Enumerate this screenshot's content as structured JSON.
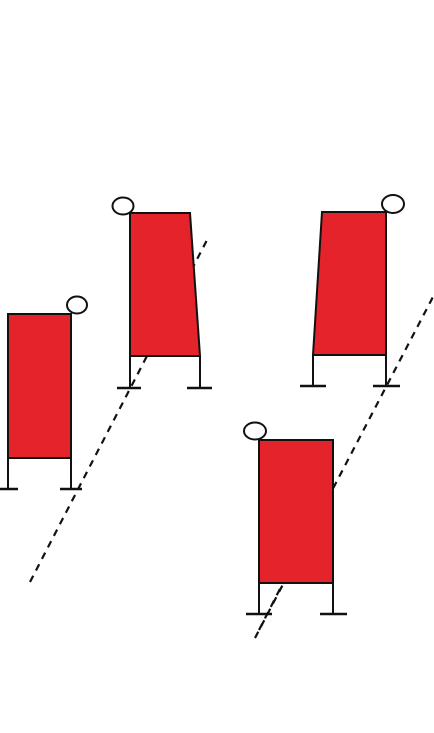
{
  "colors": {
    "board_fill": "#e5232a",
    "stroke": "#111111",
    "background": "#ffffff"
  },
  "figures": [
    {
      "id": "board-1",
      "head_side": "right",
      "shape": "rectangle"
    },
    {
      "id": "board-2",
      "head_side": "left",
      "shape": "tapered"
    },
    {
      "id": "board-3",
      "head_side": "right",
      "shape": "tapered"
    },
    {
      "id": "board-4",
      "head_side": "left",
      "shape": "rectangle"
    }
  ],
  "guide_lines": [
    {
      "id": "line-1",
      "style": "dashed"
    },
    {
      "id": "line-2",
      "style": "dashed"
    },
    {
      "id": "line-3",
      "style": "dashed"
    }
  ]
}
